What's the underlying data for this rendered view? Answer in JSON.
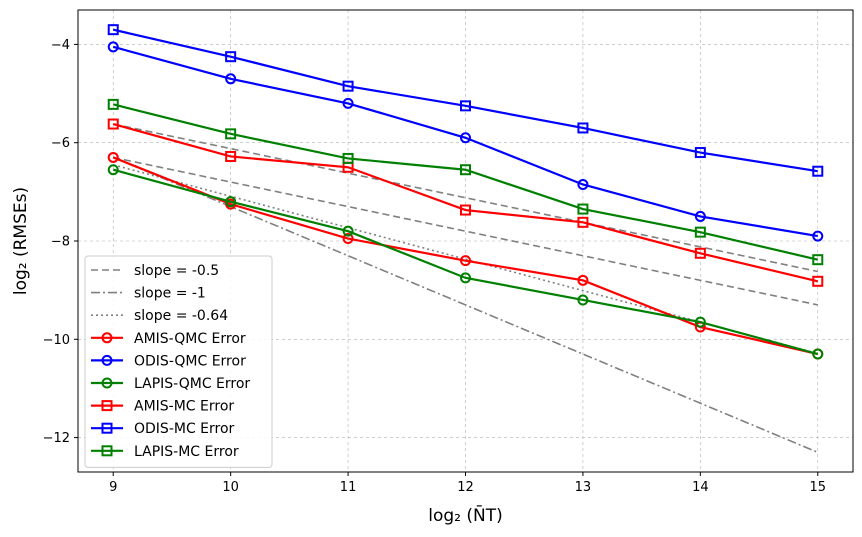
{
  "chart_data": {
    "type": "line",
    "title": "",
    "xlabel": "log₂ (N̄T)",
    "ylabel": "log₂ (RMSEs)",
    "xlim": [
      8.7,
      15.3
    ],
    "ylim": [
      -12.7,
      -3.3
    ],
    "xticks": [
      9,
      10,
      11,
      12,
      13,
      14,
      15
    ],
    "yticks": [
      -12,
      -10,
      -8,
      -6,
      -4
    ],
    "xtick_labels": [
      "9",
      "10",
      "11",
      "12",
      "13",
      "14",
      "15"
    ],
    "ytick_labels": [
      "−12",
      "−10",
      "−8",
      "−6",
      "−4"
    ],
    "grid": true,
    "legend_position": "lower-left",
    "x": [
      9,
      10,
      11,
      12,
      13,
      14,
      15
    ],
    "reference_lines": [
      {
        "name": "slope = -0.5",
        "slope": -0.5,
        "x": [
          9,
          15
        ],
        "y": [
          -6.3,
          -9.3
        ],
        "color": "#808080",
        "dash": "dashed"
      },
      {
        "name": "slope = -0.5",
        "slope": -0.5,
        "x": [
          9,
          15
        ],
        "y": [
          -5.62,
          -8.62
        ],
        "color": "#808080",
        "dash": "dashed",
        "legend": false
      },
      {
        "name": "slope = -1",
        "slope": -1,
        "x": [
          9,
          15
        ],
        "y": [
          -6.3,
          -12.3
        ],
        "color": "#808080",
        "dash": "dashdot"
      },
      {
        "name": "slope = -0.64",
        "slope": -0.64,
        "x": [
          9,
          15
        ],
        "y": [
          -6.45,
          -10.29
        ],
        "color": "#808080",
        "dash": "dotted"
      }
    ],
    "series": [
      {
        "name": "AMIS-QMC Error",
        "color": "#ff0000",
        "marker": "circle",
        "values": [
          -6.3,
          -7.25,
          -7.95,
          -8.4,
          -8.8,
          -9.75,
          -10.3
        ]
      },
      {
        "name": "ODIS-QMC Error",
        "color": "#0000ff",
        "marker": "circle",
        "values": [
          -4.05,
          -4.7,
          -5.2,
          -5.9,
          -6.85,
          -7.5,
          -7.9
        ]
      },
      {
        "name": "LAPIS-QMC Error",
        "color": "#008000",
        "marker": "circle",
        "values": [
          -6.55,
          -7.2,
          -7.8,
          -8.75,
          -9.2,
          -9.65,
          -10.3
        ]
      },
      {
        "name": "AMIS-MC Error",
        "color": "#ff0000",
        "marker": "square",
        "values": [
          -5.62,
          -6.28,
          -6.5,
          -7.37,
          -7.62,
          -8.25,
          -8.82
        ]
      },
      {
        "name": "ODIS-MC Error",
        "color": "#0000ff",
        "marker": "square",
        "values": [
          -3.7,
          -4.25,
          -4.85,
          -5.25,
          -5.7,
          -6.2,
          -6.58
        ]
      },
      {
        "name": "LAPIS-MC Error",
        "color": "#008000",
        "marker": "square",
        "values": [
          -5.22,
          -5.82,
          -6.32,
          -6.55,
          -7.35,
          -7.82,
          -8.38
        ]
      }
    ]
  }
}
